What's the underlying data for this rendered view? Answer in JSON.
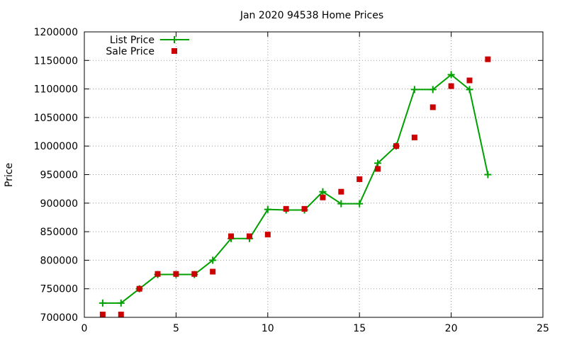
{
  "chart_data": {
    "type": "line",
    "title": "Jan 2020 94538 Home Prices",
    "xlabel": "",
    "ylabel": "Price",
    "xlim": [
      0,
      25
    ],
    "ylim": [
      700000,
      1200000
    ],
    "x_ticks": [
      "0",
      "5",
      "10",
      "15",
      "20",
      "25"
    ],
    "y_ticks": [
      "700000",
      "750000",
      "800000",
      "850000",
      "900000",
      "950000",
      "1000000",
      "1050000",
      "1100000",
      "1150000",
      "1200000"
    ],
    "grid": true,
    "legend_position": "top-left",
    "series": [
      {
        "name": "List Price",
        "style": "lines+points",
        "color": "#00a000",
        "points": [
          [
            1,
            725000
          ],
          [
            2,
            725000
          ],
          [
            3,
            750000
          ],
          [
            4,
            775000
          ],
          [
            5,
            775000
          ],
          [
            6,
            775000
          ],
          [
            7,
            800000
          ],
          [
            8,
            838000
          ],
          [
            9,
            838000
          ],
          [
            10,
            889000
          ],
          [
            11,
            888000
          ],
          [
            12,
            888000
          ],
          [
            13,
            920000
          ],
          [
            14,
            899000
          ],
          [
            15,
            899000
          ],
          [
            16,
            970000
          ],
          [
            17,
            1000000
          ],
          [
            18,
            1099000
          ],
          [
            19,
            1099000
          ],
          [
            20,
            1125000
          ],
          [
            21,
            1099000
          ],
          [
            22,
            950000
          ]
        ]
      },
      {
        "name": "Sale Price",
        "style": "points",
        "color": "#cc0000",
        "points": [
          [
            1,
            705000
          ],
          [
            2,
            705000
          ],
          [
            3,
            750000
          ],
          [
            4,
            776000
          ],
          [
            5,
            776000
          ],
          [
            6,
            776000
          ],
          [
            7,
            780000
          ],
          [
            8,
            842000
          ],
          [
            9,
            842000
          ],
          [
            10,
            845000
          ],
          [
            11,
            890000
          ],
          [
            12,
            890000
          ],
          [
            13,
            910000
          ],
          [
            14,
            920000
          ],
          [
            15,
            942000
          ],
          [
            16,
            960000
          ],
          [
            17,
            1000000
          ],
          [
            18,
            1015000
          ],
          [
            19,
            1068000
          ],
          [
            20,
            1105000
          ],
          [
            21,
            1115000
          ],
          [
            22,
            1152000
          ]
        ]
      }
    ]
  }
}
